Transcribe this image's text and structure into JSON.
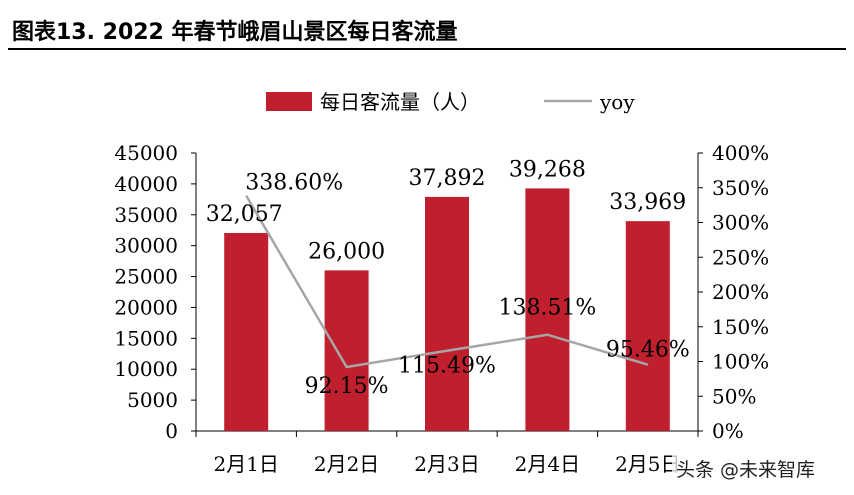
{
  "title": "图表13. 2022 年春节峨眉山景区每日客流量",
  "watermark": "头条 @未来智库",
  "chart_data": {
    "type": "bar",
    "categories": [
      "2月1日",
      "2月2日",
      "2月3日",
      "2月4日",
      "2月5日"
    ],
    "series": [
      {
        "name": "每日客流量（人）",
        "type": "bar",
        "axis": "left",
        "color": "#C0202E",
        "values": [
          32057,
          26000,
          37892,
          39268,
          33969
        ],
        "labels": [
          "32,057",
          "26,000",
          "37,892",
          "39,268",
          "33,969"
        ]
      },
      {
        "name": "yoy",
        "type": "line",
        "axis": "right",
        "color": "#A6A6A6",
        "values": [
          338.6,
          92.15,
          115.49,
          138.51,
          95.46
        ],
        "labels": [
          "338.60%",
          "92.15%",
          "115.49%",
          "138.51%",
          "95.46%"
        ]
      }
    ],
    "y_left": {
      "min": 0,
      "max": 45000,
      "ticks": [
        "0",
        "5000",
        "10000",
        "15000",
        "20000",
        "25000",
        "30000",
        "35000",
        "40000",
        "45000"
      ]
    },
    "y_right": {
      "min": 0,
      "max": 400,
      "ticks": [
        "0%",
        "50%",
        "100%",
        "150%",
        "200%",
        "250%",
        "300%",
        "350%",
        "400%"
      ]
    },
    "legend_position": "top-center",
    "grid": false
  }
}
